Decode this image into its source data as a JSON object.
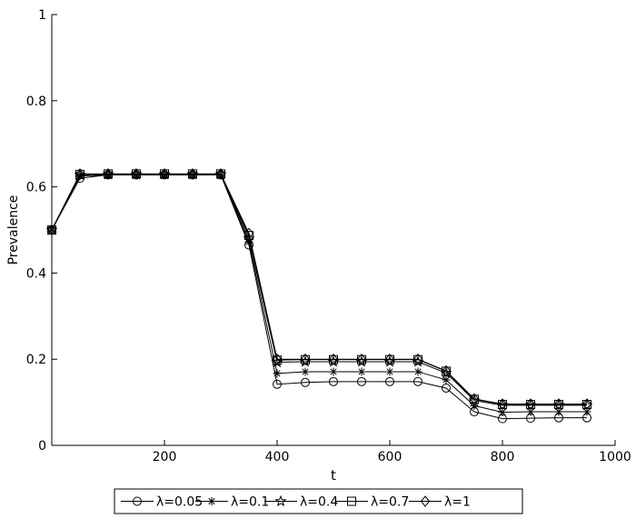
{
  "chart_data": {
    "type": "line",
    "title": "",
    "xlabel": "t",
    "ylabel": "Prevalence",
    "xlim": [
      0,
      1000
    ],
    "ylim": [
      0,
      1
    ],
    "xticks": [
      200,
      400,
      600,
      800,
      1000
    ],
    "yticks": [
      0,
      0.2,
      0.4,
      0.6,
      0.8,
      1
    ],
    "grid": false,
    "legend_position": "bottom",
    "x": [
      0,
      50,
      100,
      150,
      200,
      250,
      300,
      350,
      400,
      450,
      500,
      550,
      600,
      650,
      700,
      750,
      800,
      850,
      900,
      950
    ],
    "series": [
      {
        "name": "λ=0.05",
        "marker": "circle",
        "values": [
          0.5,
          0.62,
          0.628,
          0.628,
          0.628,
          0.628,
          0.628,
          0.465,
          0.142,
          0.146,
          0.148,
          0.148,
          0.148,
          0.148,
          0.133,
          0.078,
          0.062,
          0.063,
          0.064,
          0.064
        ]
      },
      {
        "name": "λ=0.1",
        "marker": "asterisk",
        "values": [
          0.5,
          0.625,
          0.628,
          0.628,
          0.628,
          0.628,
          0.628,
          0.472,
          0.167,
          0.171,
          0.171,
          0.171,
          0.171,
          0.171,
          0.152,
          0.092,
          0.077,
          0.078,
          0.078,
          0.078
        ]
      },
      {
        "name": "λ=0.4",
        "marker": "star",
        "values": [
          0.5,
          0.628,
          0.629,
          0.629,
          0.629,
          0.629,
          0.629,
          0.48,
          0.193,
          0.194,
          0.194,
          0.194,
          0.194,
          0.194,
          0.168,
          0.104,
          0.093,
          0.093,
          0.093,
          0.093
        ]
      },
      {
        "name": "λ=0.7",
        "marker": "square",
        "values": [
          0.5,
          0.629,
          0.63,
          0.63,
          0.63,
          0.63,
          0.63,
          0.487,
          0.198,
          0.199,
          0.199,
          0.199,
          0.199,
          0.199,
          0.172,
          0.107,
          0.095,
          0.095,
          0.095,
          0.095
        ]
      },
      {
        "name": "λ=1",
        "marker": "diamond",
        "values": [
          0.5,
          0.63,
          0.63,
          0.63,
          0.63,
          0.63,
          0.63,
          0.492,
          0.2,
          0.2,
          0.2,
          0.2,
          0.2,
          0.2,
          0.173,
          0.108,
          0.096,
          0.096,
          0.096,
          0.096
        ]
      }
    ]
  }
}
